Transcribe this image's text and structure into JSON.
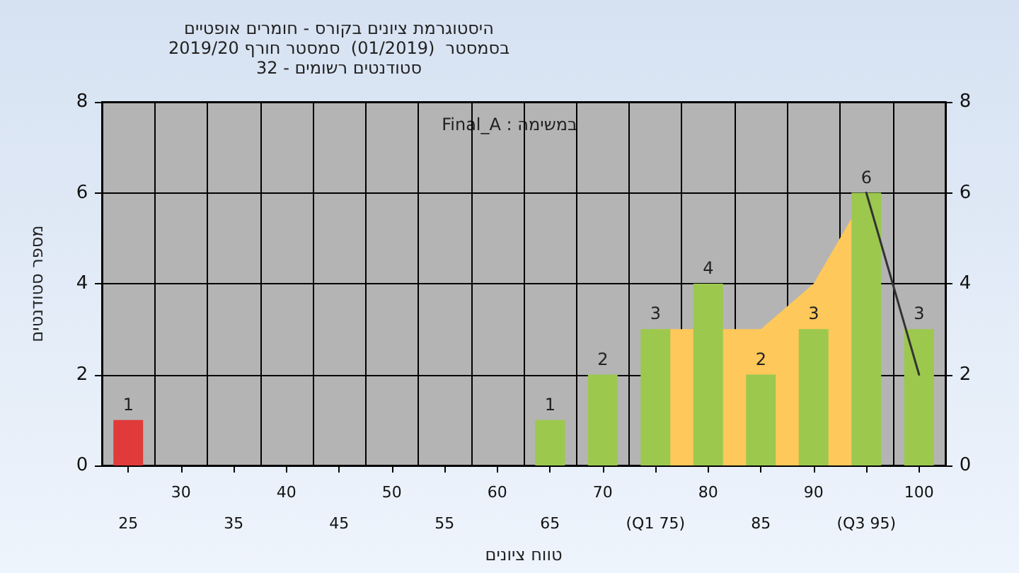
{
  "chart_data": {
    "type": "bar",
    "title": "היסטוגרמת ציונים בקורס - חומרים אופטיים\nבסמסטר  (01/2019)  סמסטר חורף 2019/20\nסטודנטים רשומים - 32",
    "xlabel": "טווח ציונים",
    "ylabel": "מספר סטודנטים",
    "annotations": [
      "במשימה : Final_A"
    ],
    "categories": [
      "25",
      "30",
      "35",
      "40",
      "45",
      "50",
      "55",
      "60",
      "65",
      "70",
      "(Q1 75)",
      "80",
      "85",
      "90",
      "(Q3 95)",
      "100"
    ],
    "series": [
      {
        "type": "area",
        "color": "#ffc85a",
        "values": [
          null,
          null,
          null,
          null,
          null,
          null,
          null,
          null,
          null,
          null,
          3,
          null,
          3,
          4,
          6,
          null
        ]
      },
      {
        "type": "line",
        "color": "#333333",
        "values": [
          null,
          null,
          null,
          null,
          null,
          null,
          null,
          null,
          null,
          null,
          null,
          null,
          null,
          null,
          6,
          2
        ]
      },
      {
        "colors": [
          "#e03a3a",
          "#9cc84e",
          "#9cc84e",
          "#9cc84e",
          "#9cc84e",
          "#9cc84e",
          "#9cc84e",
          "#9cc84e",
          "#9cc84e",
          "#9cc84e",
          "#9cc84e",
          "#9cc84e",
          "#9cc84e",
          "#9cc84e",
          "#9cc84e",
          "#9cc84e"
        ],
        "values": [
          1,
          0,
          0,
          0,
          0,
          0,
          0,
          0,
          1,
          2,
          3,
          4,
          2,
          3,
          6,
          3
        ],
        "value_labels": [
          "1",
          null,
          null,
          null,
          null,
          null,
          null,
          null,
          "1",
          "2",
          "3",
          "4",
          "2",
          "3",
          "6",
          "3"
        ]
      }
    ],
    "ylim": [
      0,
      8
    ],
    "yticks": [
      0,
      2,
      4,
      6,
      8
    ],
    "y2lim": [
      0,
      8
    ],
    "y2ticks": [
      0,
      2,
      4,
      6,
      8
    ],
    "grid": true
  }
}
